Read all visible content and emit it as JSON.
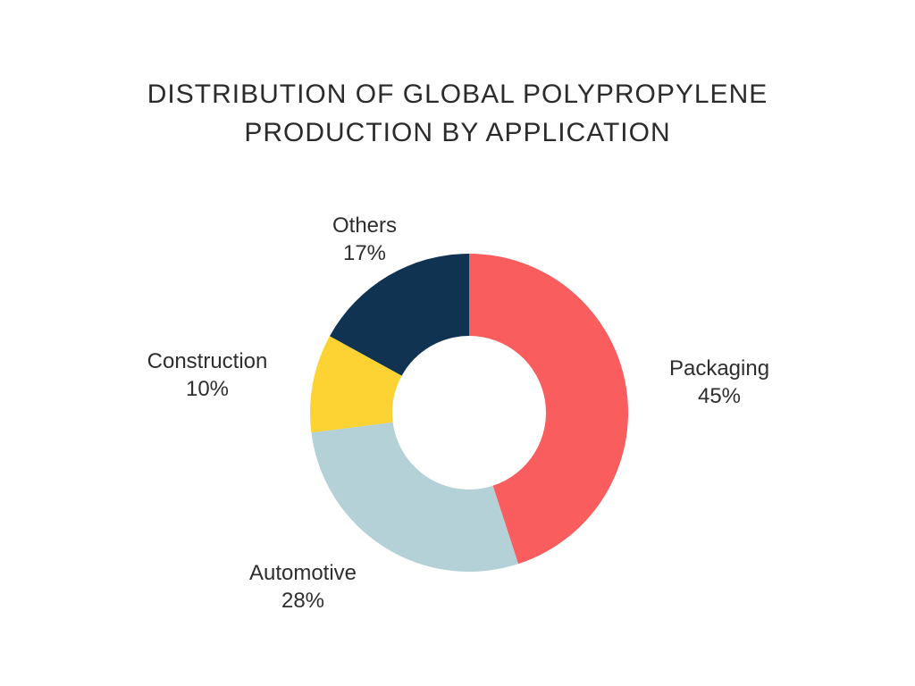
{
  "header": {
    "line1": "DISTRIBUTION OF GLOBAL POLYPROPYLENE",
    "line2": "PRODUCTION BY APPLICATION"
  },
  "chart_data": {
    "type": "pie",
    "donut": true,
    "title": "DISTRIBUTION OF GLOBAL POLYPROPYLENE PRODUCTION BY APPLICATION",
    "categories": [
      "Packaging",
      "Automotive",
      "Construction",
      "Others"
    ],
    "values": [
      45,
      28,
      10,
      17
    ],
    "value_labels": [
      "45%",
      "28%",
      "10%",
      "17%"
    ],
    "unit": "%",
    "colors": [
      "#FA5D5D",
      "#B3D1D6",
      "#FDD233",
      "#0F3350"
    ],
    "start_angle_deg": 0,
    "direction": "clockwise",
    "inner_radius_ratio": 0.483,
    "legend": "none",
    "label_position": "outside",
    "background_color": "#FFFFFF"
  }
}
